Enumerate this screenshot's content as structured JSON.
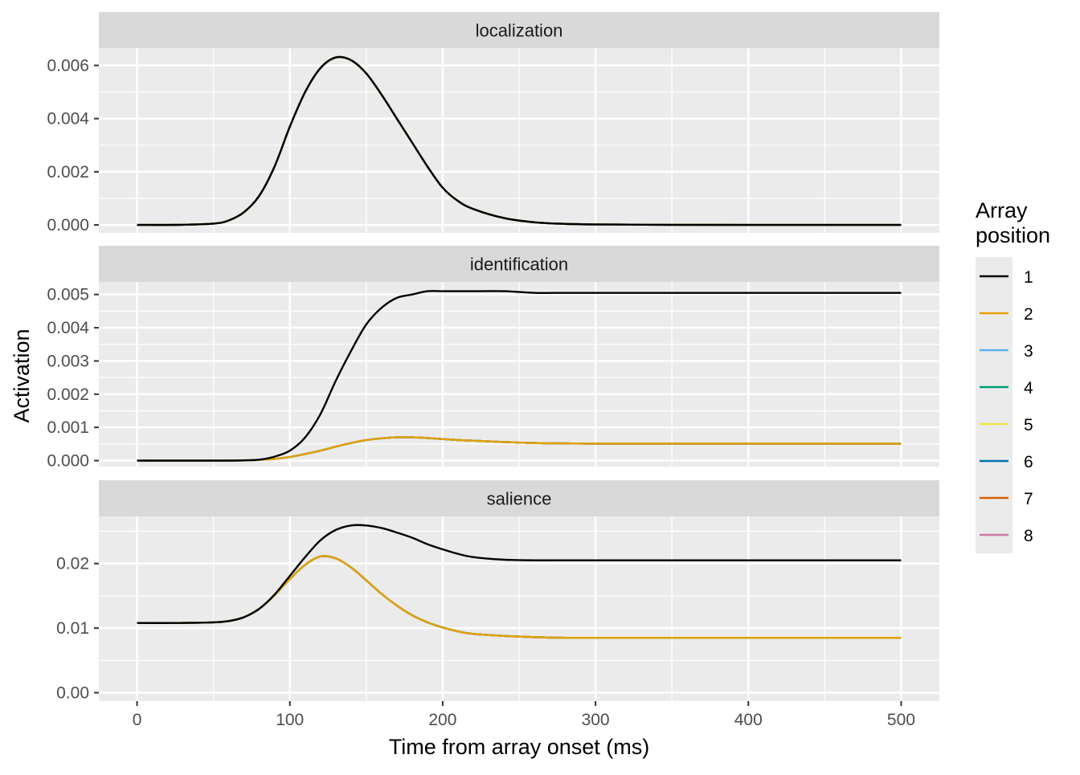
{
  "chart_data": {
    "type": "line",
    "xlabel": "Time from array onset (ms)",
    "ylabel": "Activation",
    "xlim": [
      -25,
      525
    ],
    "x_ticks": [
      0,
      100,
      200,
      300,
      400,
      500
    ],
    "x_tick_labels": [
      "0",
      "100",
      "200",
      "300",
      "400",
      "500"
    ],
    "grid": true,
    "legend": {
      "title_line1": "Array",
      "title_line2": "position",
      "placement": "right",
      "entries": [
        {
          "label": "1",
          "color": "#000000"
        },
        {
          "label": "2",
          "color": "#E69F00"
        },
        {
          "label": "3",
          "color": "#56B4E9"
        },
        {
          "label": "4",
          "color": "#009E73"
        },
        {
          "label": "5",
          "color": "#F0E442"
        },
        {
          "label": "6",
          "color": "#0072B2"
        },
        {
          "label": "7",
          "color": "#D55E00"
        },
        {
          "label": "8",
          "color": "#CC79A7"
        }
      ]
    },
    "x": [
      0,
      25,
      50,
      60,
      70,
      80,
      90,
      100,
      110,
      120,
      130,
      140,
      150,
      160,
      170,
      180,
      190,
      200,
      210,
      220,
      240,
      260,
      280,
      300,
      350,
      400,
      450,
      500
    ],
    "panels": [
      {
        "title": "localization",
        "ylim": [
          -0.0003,
          0.00665
        ],
        "y_ticks": [
          0,
          0.002,
          0.004,
          0.006
        ],
        "y_tick_labels": [
          "0.000",
          "0.002",
          "0.004",
          "0.006"
        ],
        "series": [
          {
            "label": "1",
            "values": [
              0,
              2e-06,
              5e-05,
              0.00017,
              0.00048,
              0.0011,
              0.0022,
              0.0037,
              0.005,
              0.0059,
              0.0063,
              0.0062,
              0.0057,
              0.0049,
              0.004,
              0.0031,
              0.0022,
              0.0014,
              0.0009,
              0.0006,
              0.00026,
              0.0001,
              4e-05,
              2e-05,
              3e-06,
              1e-06,
              0,
              0
            ]
          },
          {
            "label": "2",
            "values": [
              0,
              2e-06,
              5e-05,
              0.00017,
              0.00048,
              0.0011,
              0.0022,
              0.0037,
              0.005,
              0.0059,
              0.0063,
              0.0062,
              0.0057,
              0.0049,
              0.004,
              0.0031,
              0.0022,
              0.0014,
              0.0009,
              0.0006,
              0.00026,
              0.0001,
              4e-05,
              2e-05,
              3e-06,
              1e-06,
              0,
              0
            ]
          },
          {
            "label": "3",
            "values": [
              0,
              2e-06,
              5e-05,
              0.00017,
              0.00048,
              0.0011,
              0.0022,
              0.0037,
              0.005,
              0.0059,
              0.0063,
              0.0062,
              0.0057,
              0.0049,
              0.004,
              0.0031,
              0.0022,
              0.0014,
              0.0009,
              0.0006,
              0.00026,
              0.0001,
              4e-05,
              2e-05,
              3e-06,
              1e-06,
              0,
              0
            ]
          },
          {
            "label": "4",
            "values": [
              0,
              2e-06,
              5e-05,
              0.00017,
              0.00048,
              0.0011,
              0.0022,
              0.0037,
              0.005,
              0.0059,
              0.0063,
              0.0062,
              0.0057,
              0.0049,
              0.004,
              0.0031,
              0.0022,
              0.0014,
              0.0009,
              0.0006,
              0.00026,
              0.0001,
              4e-05,
              2e-05,
              3e-06,
              1e-06,
              0,
              0
            ]
          },
          {
            "label": "5",
            "values": [
              0,
              2e-06,
              5e-05,
              0.00017,
              0.00048,
              0.0011,
              0.0022,
              0.0037,
              0.005,
              0.0059,
              0.0063,
              0.0062,
              0.0057,
              0.0049,
              0.004,
              0.0031,
              0.0022,
              0.0014,
              0.0009,
              0.0006,
              0.00026,
              0.0001,
              4e-05,
              2e-05,
              3e-06,
              1e-06,
              0,
              0
            ]
          },
          {
            "label": "6",
            "values": [
              0,
              2e-06,
              5e-05,
              0.00017,
              0.00048,
              0.0011,
              0.0022,
              0.0037,
              0.005,
              0.0059,
              0.0063,
              0.0062,
              0.0057,
              0.0049,
              0.004,
              0.0031,
              0.0022,
              0.0014,
              0.0009,
              0.0006,
              0.00026,
              0.0001,
              4e-05,
              2e-05,
              3e-06,
              1e-06,
              0,
              0
            ]
          },
          {
            "label": "7",
            "values": [
              0,
              2e-06,
              5e-05,
              0.00017,
              0.00048,
              0.0011,
              0.0022,
              0.0037,
              0.005,
              0.0059,
              0.0063,
              0.0062,
              0.0057,
              0.0049,
              0.004,
              0.0031,
              0.0022,
              0.0014,
              0.0009,
              0.0006,
              0.00026,
              0.0001,
              4e-05,
              2e-05,
              3e-06,
              1e-06,
              0,
              0
            ]
          },
          {
            "label": "8",
            "values": [
              0,
              2e-06,
              5e-05,
              0.00017,
              0.00048,
              0.0011,
              0.0022,
              0.0037,
              0.005,
              0.0059,
              0.0063,
              0.0062,
              0.0057,
              0.0049,
              0.004,
              0.0031,
              0.0022,
              0.0014,
              0.0009,
              0.0006,
              0.00026,
              0.0001,
              4e-05,
              2e-05,
              3e-06,
              1e-06,
              0,
              0
            ]
          }
        ]
      },
      {
        "title": "identification",
        "ylim": [
          -0.00018,
          0.00538
        ],
        "y_ticks": [
          0,
          0.001,
          0.002,
          0.003,
          0.004,
          0.005
        ],
        "y_tick_labels": [
          "0.000",
          "0.001",
          "0.002",
          "0.003",
          "0.004",
          "0.005"
        ],
        "series": [
          {
            "label": "1",
            "values": [
              0,
              0,
              0,
              0,
              1e-05,
              3e-05,
              0.00012,
              0.0003,
              0.0007,
              0.0014,
              0.0024,
              0.0033,
              0.0041,
              0.0046,
              0.0049,
              0.005,
              0.0051,
              0.0051,
              0.0051,
              0.0051,
              0.0051,
              0.00505,
              0.00505,
              0.00505,
              0.00505,
              0.00505,
              0.00505,
              0.00505
            ]
          },
          {
            "label": "2",
            "values": [
              0,
              0,
              0,
              0,
              5e-06,
              2e-05,
              5e-05,
              0.00011,
              0.0002,
              0.0003,
              0.00042,
              0.00053,
              0.00062,
              0.00067,
              0.0007,
              0.0007,
              0.00068,
              0.00065,
              0.00062,
              0.0006,
              0.00056,
              0.00053,
              0.00052,
              0.00051,
              0.00051,
              0.00051,
              0.00051,
              0.00051
            ]
          },
          {
            "label": "3",
            "values": [
              0,
              0,
              0,
              0,
              5e-06,
              2e-05,
              5e-05,
              0.00011,
              0.0002,
              0.0003,
              0.00042,
              0.00053,
              0.00062,
              0.00067,
              0.0007,
              0.0007,
              0.00068,
              0.00065,
              0.00062,
              0.0006,
              0.00056,
              0.00053,
              0.00052,
              0.00051,
              0.00051,
              0.00051,
              0.00051,
              0.00051
            ]
          },
          {
            "label": "4",
            "values": [
              0,
              0,
              0,
              0,
              5e-06,
              2e-05,
              5e-05,
              0.00011,
              0.0002,
              0.0003,
              0.00042,
              0.00053,
              0.00062,
              0.00067,
              0.0007,
              0.0007,
              0.00068,
              0.00065,
              0.00062,
              0.0006,
              0.00056,
              0.00053,
              0.00052,
              0.00051,
              0.00051,
              0.00051,
              0.00051,
              0.00051
            ]
          },
          {
            "label": "5",
            "values": [
              0,
              0,
              0,
              0,
              5e-06,
              2e-05,
              5e-05,
              0.00011,
              0.0002,
              0.0003,
              0.00042,
              0.00053,
              0.00062,
              0.00067,
              0.0007,
              0.0007,
              0.00068,
              0.00065,
              0.00062,
              0.0006,
              0.00056,
              0.00053,
              0.00052,
              0.00051,
              0.00051,
              0.00051,
              0.00051,
              0.00051
            ]
          },
          {
            "label": "6",
            "values": [
              0,
              0,
              0,
              0,
              5e-06,
              2e-05,
              5e-05,
              0.00011,
              0.0002,
              0.0003,
              0.00042,
              0.00053,
              0.00062,
              0.00067,
              0.0007,
              0.0007,
              0.00068,
              0.00065,
              0.00062,
              0.0006,
              0.00056,
              0.00053,
              0.00052,
              0.00051,
              0.00051,
              0.00051,
              0.00051,
              0.00051
            ]
          },
          {
            "label": "7",
            "values": [
              0,
              0,
              0,
              0,
              5e-06,
              2e-05,
              5e-05,
              0.00011,
              0.0002,
              0.0003,
              0.00042,
              0.00053,
              0.00062,
              0.00067,
              0.0007,
              0.0007,
              0.00068,
              0.00065,
              0.00062,
              0.0006,
              0.00056,
              0.00053,
              0.00052,
              0.00051,
              0.00051,
              0.00051,
              0.00051,
              0.00051
            ]
          },
          {
            "label": "8",
            "values": [
              0,
              0,
              0,
              0,
              5e-06,
              2e-05,
              5e-05,
              0.00011,
              0.0002,
              0.0003,
              0.00042,
              0.00053,
              0.00062,
              0.00067,
              0.0007,
              0.0007,
              0.00068,
              0.00065,
              0.00062,
              0.0006,
              0.00056,
              0.00053,
              0.00052,
              0.00051,
              0.00051,
              0.00051,
              0.00051,
              0.00051
            ]
          }
        ]
      },
      {
        "title": "salience",
        "ylim": [
          -0.0013,
          0.0273
        ],
        "y_ticks": [
          0,
          0.01,
          0.02
        ],
        "y_tick_labels": [
          "0.00",
          "0.01",
          "0.02"
        ],
        "series": [
          {
            "label": "1",
            "values": [
              0.0108,
              0.0108,
              0.0109,
              0.0111,
              0.0117,
              0.013,
              0.0152,
              0.0181,
              0.021,
              0.0236,
              0.0252,
              0.0259,
              0.0259,
              0.0255,
              0.0248,
              0.024,
              0.023,
              0.0222,
              0.0215,
              0.021,
              0.0206,
              0.0205,
              0.0205,
              0.0205,
              0.0205,
              0.0205,
              0.0205,
              0.0205
            ]
          },
          {
            "label": "2",
            "values": [
              0.0108,
              0.0108,
              0.0109,
              0.0111,
              0.0117,
              0.013,
              0.0151,
              0.0176,
              0.0198,
              0.0211,
              0.0208,
              0.0194,
              0.0174,
              0.0153,
              0.0135,
              0.012,
              0.0109,
              0.0101,
              0.0095,
              0.0091,
              0.0088,
              0.0086,
              0.0085,
              0.0085,
              0.0085,
              0.0085,
              0.0085,
              0.0085
            ]
          },
          {
            "label": "3",
            "values": [
              0.0108,
              0.0108,
              0.0109,
              0.0111,
              0.0117,
              0.013,
              0.0151,
              0.0176,
              0.0198,
              0.0211,
              0.0208,
              0.0194,
              0.0174,
              0.0153,
              0.0135,
              0.012,
              0.0109,
              0.0101,
              0.0095,
              0.0091,
              0.0088,
              0.0086,
              0.0085,
              0.0085,
              0.0085,
              0.0085,
              0.0085,
              0.0085
            ]
          },
          {
            "label": "4",
            "values": [
              0.0108,
              0.0108,
              0.0109,
              0.0111,
              0.0117,
              0.013,
              0.0151,
              0.0176,
              0.0198,
              0.0211,
              0.0208,
              0.0194,
              0.0174,
              0.0153,
              0.0135,
              0.012,
              0.0109,
              0.0101,
              0.0095,
              0.0091,
              0.0088,
              0.0086,
              0.0085,
              0.0085,
              0.0085,
              0.0085,
              0.0085,
              0.0085
            ]
          },
          {
            "label": "5",
            "values": [
              0.0108,
              0.0108,
              0.0109,
              0.0111,
              0.0117,
              0.013,
              0.0151,
              0.0176,
              0.0198,
              0.0211,
              0.0208,
              0.0194,
              0.0174,
              0.0153,
              0.0135,
              0.012,
              0.0109,
              0.0101,
              0.0095,
              0.0091,
              0.0088,
              0.0086,
              0.0085,
              0.0085,
              0.0085,
              0.0085,
              0.0085,
              0.0085
            ]
          },
          {
            "label": "6",
            "values": [
              0.0108,
              0.0108,
              0.0109,
              0.0111,
              0.0117,
              0.013,
              0.0151,
              0.0176,
              0.0198,
              0.0211,
              0.0208,
              0.0194,
              0.0174,
              0.0153,
              0.0135,
              0.012,
              0.0109,
              0.0101,
              0.0095,
              0.0091,
              0.0088,
              0.0086,
              0.0085,
              0.0085,
              0.0085,
              0.0085,
              0.0085,
              0.0085
            ]
          },
          {
            "label": "7",
            "values": [
              0.0108,
              0.0108,
              0.0109,
              0.0111,
              0.0117,
              0.013,
              0.0151,
              0.0176,
              0.0198,
              0.0211,
              0.0208,
              0.0194,
              0.0174,
              0.0153,
              0.0135,
              0.012,
              0.0109,
              0.0101,
              0.0095,
              0.0091,
              0.0088,
              0.0086,
              0.0085,
              0.0085,
              0.0085,
              0.0085,
              0.0085,
              0.0085
            ]
          },
          {
            "label": "8",
            "values": [
              0.0108,
              0.0108,
              0.0109,
              0.0111,
              0.0117,
              0.013,
              0.0151,
              0.0176,
              0.0198,
              0.0211,
              0.0208,
              0.0194,
              0.0174,
              0.0153,
              0.0135,
              0.012,
              0.0109,
              0.0101,
              0.0095,
              0.0091,
              0.0088,
              0.0086,
              0.0085,
              0.0085,
              0.0085,
              0.0085,
              0.0085,
              0.0085
            ]
          }
        ]
      }
    ]
  }
}
